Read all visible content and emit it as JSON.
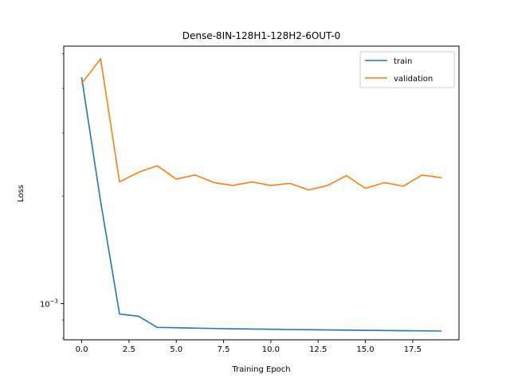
{
  "chart_data": {
    "type": "line",
    "title": "Dense-8IN-128H1-128H2-6OUT-0",
    "xlabel": "Training Epoch",
    "ylabel": "Loss",
    "x": [
      0,
      1,
      2,
      3,
      4,
      5,
      6,
      7,
      8,
      9,
      10,
      11,
      12,
      13,
      14,
      15,
      16,
      17,
      18,
      19
    ],
    "xlim": [
      -0.95,
      19.95
    ],
    "xticks": [
      0,
      2.5,
      5,
      7.5,
      10,
      12.5,
      15,
      17.5
    ],
    "xtick_labels": [
      "0.0",
      "2.5",
      "5.0",
      "7.5",
      "10.0",
      "12.5",
      "15.0",
      "17.5"
    ],
    "yscale": "log",
    "ylim": [
      0.000792,
      0.00525
    ],
    "yticks": [
      0.001
    ],
    "ytick_labels": [
      "10^{-3}"
    ],
    "ytick_label_parts": {
      "base": "10",
      "exponent": "−3"
    },
    "grid": false,
    "legend_position": "top-right",
    "series": [
      {
        "name": "train",
        "color": "#1f77b4",
        "values": [
          0.00428,
          0.00193,
          0.000935,
          0.000922,
          0.000858,
          0.000856,
          0.000854,
          0.000852,
          0.00085,
          0.000849,
          0.000848,
          0.000846,
          0.000845,
          0.000844,
          0.000843,
          0.000842,
          0.000841,
          0.00084,
          0.000839,
          0.000838
        ]
      },
      {
        "name": "validation",
        "color": "#ff7f0e",
        "values": [
          0.00413,
          0.00484,
          0.00219,
          0.00233,
          0.00243,
          0.00223,
          0.00229,
          0.00218,
          0.00214,
          0.00219,
          0.00214,
          0.00217,
          0.00208,
          0.00214,
          0.00228,
          0.0021,
          0.00218,
          0.00213,
          0.00229,
          0.00225
        ]
      }
    ]
  }
}
